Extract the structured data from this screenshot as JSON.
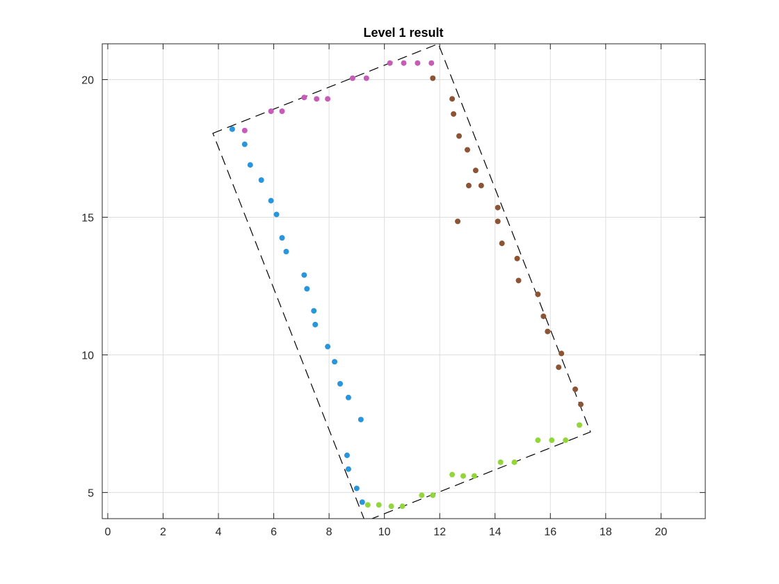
{
  "chart_data": {
    "type": "scatter",
    "title": "Level 1 result",
    "xlabel": "",
    "ylabel": "",
    "xlim": [
      -0.2,
      21.6
    ],
    "ylim": [
      4.05,
      21.3
    ],
    "xticks": [
      0,
      2,
      4,
      6,
      8,
      10,
      12,
      14,
      16,
      18,
      20
    ],
    "yticks": [
      5,
      10,
      15,
      20
    ],
    "grid": true,
    "legend": "none",
    "colors": {
      "blue": "#2b95dc",
      "pink": "#c75bb8",
      "brown": "#8b5535",
      "green": "#93d63c",
      "outline": "#000000",
      "grid": "#dddddd",
      "axis": "#262626"
    },
    "series": [
      {
        "color_key": "blue",
        "x": [
          4.5,
          4.95,
          5.15,
          5.55,
          5.9,
          6.1,
          6.3,
          6.45,
          7.1,
          7.2,
          7.45,
          7.5,
          7.95,
          8.2,
          8.4,
          8.7,
          9.15,
          8.65,
          8.7,
          9.0,
          9.2
        ],
        "y": [
          18.2,
          17.65,
          16.9,
          16.35,
          15.6,
          15.1,
          14.25,
          13.75,
          12.9,
          12.4,
          11.6,
          11.1,
          10.3,
          9.75,
          8.95,
          8.45,
          7.65,
          6.35,
          5.85,
          5.15,
          4.65
        ]
      },
      {
        "color_key": "pink",
        "x": [
          4.95,
          5.9,
          6.3,
          7.1,
          7.55,
          7.95,
          8.85,
          9.35,
          10.2,
          10.7,
          11.2,
          11.7
        ],
        "y": [
          18.15,
          18.85,
          18.85,
          19.35,
          19.3,
          19.3,
          20.05,
          20.05,
          20.6,
          20.6,
          20.6,
          20.6
        ]
      },
      {
        "color_key": "brown",
        "x": [
          11.75,
          12.45,
          12.5,
          12.7,
          13.0,
          13.3,
          13.05,
          13.5,
          12.65,
          14.1,
          14.1,
          14.25,
          14.8,
          14.85,
          15.55,
          15.75,
          15.9,
          16.4,
          16.3,
          16.9,
          17.1
        ],
        "y": [
          20.05,
          19.3,
          18.75,
          17.95,
          17.45,
          16.7,
          16.15,
          16.15,
          14.85,
          15.35,
          14.85,
          14.05,
          13.5,
          12.7,
          12.2,
          11.4,
          10.85,
          10.05,
          9.55,
          8.75,
          8.2
        ]
      },
      {
        "color_key": "green",
        "x": [
          9.4,
          9.8,
          10.25,
          10.65,
          11.35,
          11.75,
          12.45,
          12.85,
          13.25,
          14.2,
          14.7,
          15.55,
          16.05,
          16.55,
          17.05
        ],
        "y": [
          4.55,
          4.55,
          4.5,
          4.5,
          4.9,
          4.9,
          5.65,
          5.6,
          5.6,
          6.1,
          6.1,
          6.9,
          6.9,
          6.9,
          7.45
        ]
      }
    ],
    "outline": {
      "style": "dashed",
      "vertices_x": [
        3.8,
        11.95,
        17.45,
        9.3
      ],
      "vertices_y": [
        18.05,
        21.3,
        7.2,
        3.95
      ]
    }
  }
}
